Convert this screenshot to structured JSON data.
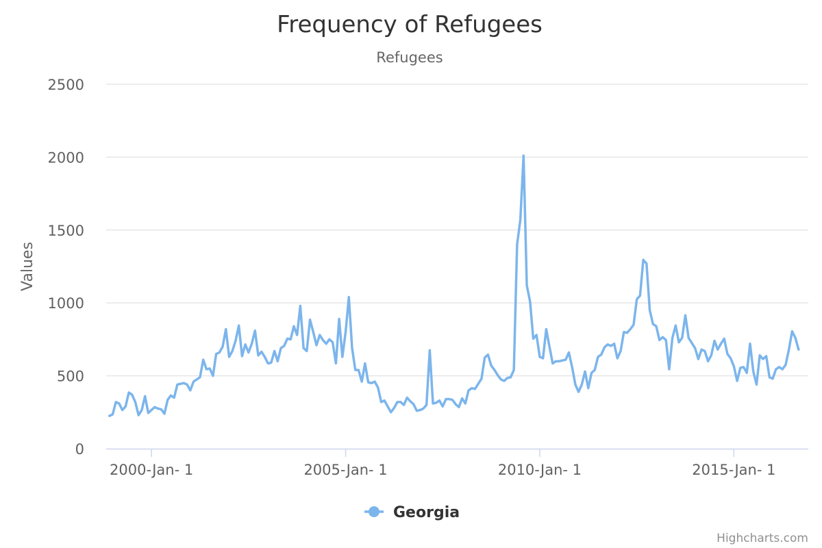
{
  "chart_data": {
    "type": "line",
    "title": "Frequency of Refugees",
    "subtitle": "Refugees",
    "ylabel": "Values",
    "xlabel": "",
    "ylim": [
      0,
      2500
    ],
    "y_ticks": [
      0,
      500,
      1000,
      1500,
      2000,
      2500
    ],
    "x_ticks": [
      {
        "label": "2000-Jan- 1",
        "date": "2000-01"
      },
      {
        "label": "2005-Jan- 1",
        "date": "2005-01"
      },
      {
        "label": "2010-Jan- 1",
        "date": "2010-01"
      },
      {
        "label": "2015-Jan- 1",
        "date": "2015-01"
      }
    ],
    "x_range": [
      "1998-11",
      "2016-12"
    ],
    "grid": "horizontal",
    "legend_position": "bottom-center",
    "series": [
      {
        "name": "Georgia",
        "color": "#7cb5ec",
        "start": "1998-12",
        "values": [
          225,
          235,
          320,
          310,
          265,
          290,
          385,
          370,
          320,
          230,
          265,
          360,
          245,
          265,
          285,
          275,
          270,
          240,
          335,
          365,
          350,
          440,
          445,
          450,
          440,
          400,
          460,
          475,
          490,
          610,
          545,
          550,
          500,
          650,
          660,
          700,
          820,
          630,
          670,
          740,
          845,
          635,
          715,
          660,
          720,
          810,
          640,
          665,
          630,
          585,
          590,
          670,
          600,
          690,
          705,
          755,
          750,
          840,
          780,
          980,
          690,
          670,
          885,
          800,
          710,
          780,
          745,
          720,
          750,
          730,
          585,
          890,
          630,
          800,
          1040,
          690,
          540,
          540,
          460,
          585,
          455,
          450,
          460,
          420,
          320,
          330,
          290,
          250,
          280,
          320,
          320,
          300,
          350,
          325,
          305,
          260,
          265,
          275,
          300,
          675,
          310,
          315,
          330,
          290,
          340,
          340,
          335,
          305,
          285,
          345,
          310,
          400,
          415,
          410,
          445,
          480,
          625,
          645,
          570,
          540,
          505,
          475,
          465,
          485,
          490,
          540,
          1400,
          1570,
          2010,
          1120,
          1010,
          755,
          780,
          630,
          620,
          820,
          700,
          585,
          600,
          600,
          605,
          610,
          660,
          560,
          440,
          390,
          440,
          530,
          415,
          520,
          540,
          630,
          645,
          695,
          715,
          705,
          720,
          620,
          670,
          800,
          795,
          820,
          850,
          1025,
          1050,
          1295,
          1270,
          950,
          855,
          840,
          745,
          765,
          745,
          545,
          760,
          845,
          730,
          760,
          915,
          760,
          725,
          690,
          615,
          680,
          670,
          600,
          640,
          740,
          680,
          720,
          755,
          650,
          620,
          565,
          465,
          555,
          560,
          520,
          720,
          530,
          440,
          640,
          615,
          635,
          490,
          480,
          545,
          560,
          545,
          575,
          680,
          805,
          760,
          680
        ]
      }
    ],
    "legend": [
      {
        "label": "Georgia",
        "color": "#7cb5ec"
      }
    ],
    "credits": "Highcharts.com"
  }
}
